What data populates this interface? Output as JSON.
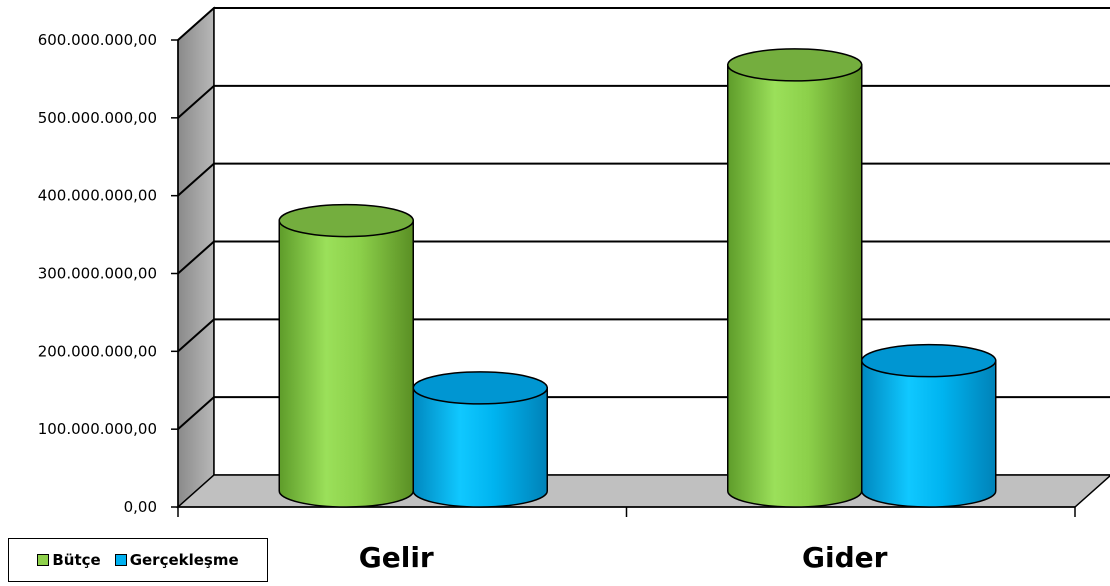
{
  "chart_data": {
    "type": "bar",
    "style": "3d-cylinder",
    "categories": [
      "Gelir",
      "Gider"
    ],
    "series": [
      {
        "name": "Bütçe",
        "color": "#8ED04B",
        "values": [
          350000000,
          550000000
        ]
      },
      {
        "name": "Gerçekleşme",
        "color": "#00B0F0",
        "values": [
          135000000,
          170000000
        ]
      }
    ],
    "y_ticks": [
      "0,00",
      "100.000.000,00",
      "200.000.000,00",
      "300.000.000,00",
      "400.000.000,00",
      "500.000.000,00",
      "600.000.000,00"
    ],
    "ylim": [
      0,
      600000000
    ],
    "grid": true,
    "legend_position": "bottom-left"
  }
}
